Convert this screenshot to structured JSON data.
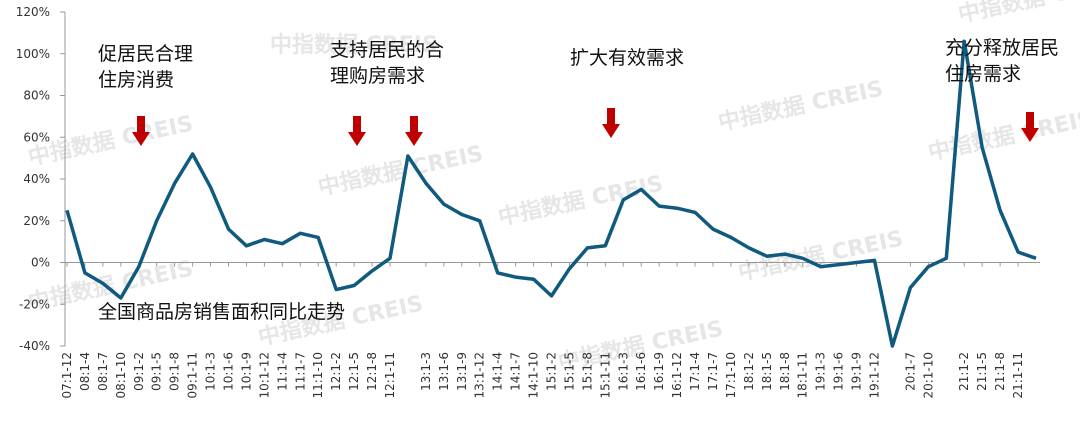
{
  "chart_data": {
    "type": "line",
    "watermark": "中指数据 CREIS",
    "annotations": [
      "促居民合理\n住房消费",
      "支持居民的合\n理购房需求",
      "扩大有效需求",
      "充分释放居民\n住房需求",
      "全国商品房销售面积同比走势"
    ],
    "categories": [
      "07:1-12",
      "08:1-4",
      "08:1-7",
      "08:1-10",
      "09:1-2",
      "09:1-5",
      "09:1-8",
      "09:1-11",
      "10:1-3",
      "10:1-6",
      "10:1-9",
      "10:1-12",
      "11:1-4",
      "11:1-7",
      "11:1-10",
      "12:1-2",
      "12:1-5",
      "12:1-8",
      "12:1-11",
      null,
      "13:1-3",
      "13:1-6",
      "13:1-9",
      "13:1-12",
      "14:1-4",
      "14:1-7",
      "14:1-10",
      "15:1-2",
      "15:1-5",
      "15:1-8",
      "15:1-11",
      "16:1-3",
      "16:1-6",
      "16:1-9",
      "16:1-12",
      "17:1-4",
      "17:1-7",
      "17:1-10",
      "18:1-2",
      "18:1-5",
      "18:1-8",
      "18:1-11",
      "19:1-3",
      "19:1-6",
      "19:1-9",
      "19:1-12",
      null,
      "20:1-7",
      "20:1-10",
      null,
      "21:1-2",
      "21:1-5",
      "21:1-8",
      "21:1-11",
      null
    ],
    "series": [
      {
        "name": "全国商品房销售面积同比",
        "color": "#0f5a7e",
        "values": [
          25,
          -5,
          -10,
          -17,
          -2,
          20,
          38,
          52,
          36,
          16,
          8,
          11,
          9,
          14,
          12,
          -13,
          -11,
          -4,
          2,
          51,
          38,
          28,
          23,
          20,
          -5,
          -7,
          -8,
          -16,
          -3,
          7,
          8,
          30,
          35,
          27,
          26,
          24,
          16,
          12,
          7,
          3,
          4,
          2,
          -2,
          -1,
          0,
          1,
          -40,
          -12,
          -2,
          2,
          106,
          55,
          25,
          5,
          2
        ]
      }
    ],
    "ylim": [
      -40,
      120
    ],
    "yticks": [
      {
        "value": -40,
        "label": "-40%"
      },
      {
        "value": -20,
        "label": "-20%"
      },
      {
        "value": 0,
        "label": "0%"
      },
      {
        "value": 20,
        "label": "20%"
      },
      {
        "value": 40,
        "label": "40%"
      },
      {
        "value": 60,
        "label": "60%"
      },
      {
        "value": 80,
        "label": "80%"
      },
      {
        "value": 100,
        "label": "100%"
      },
      {
        "value": 120,
        "label": "120%"
      }
    ]
  }
}
